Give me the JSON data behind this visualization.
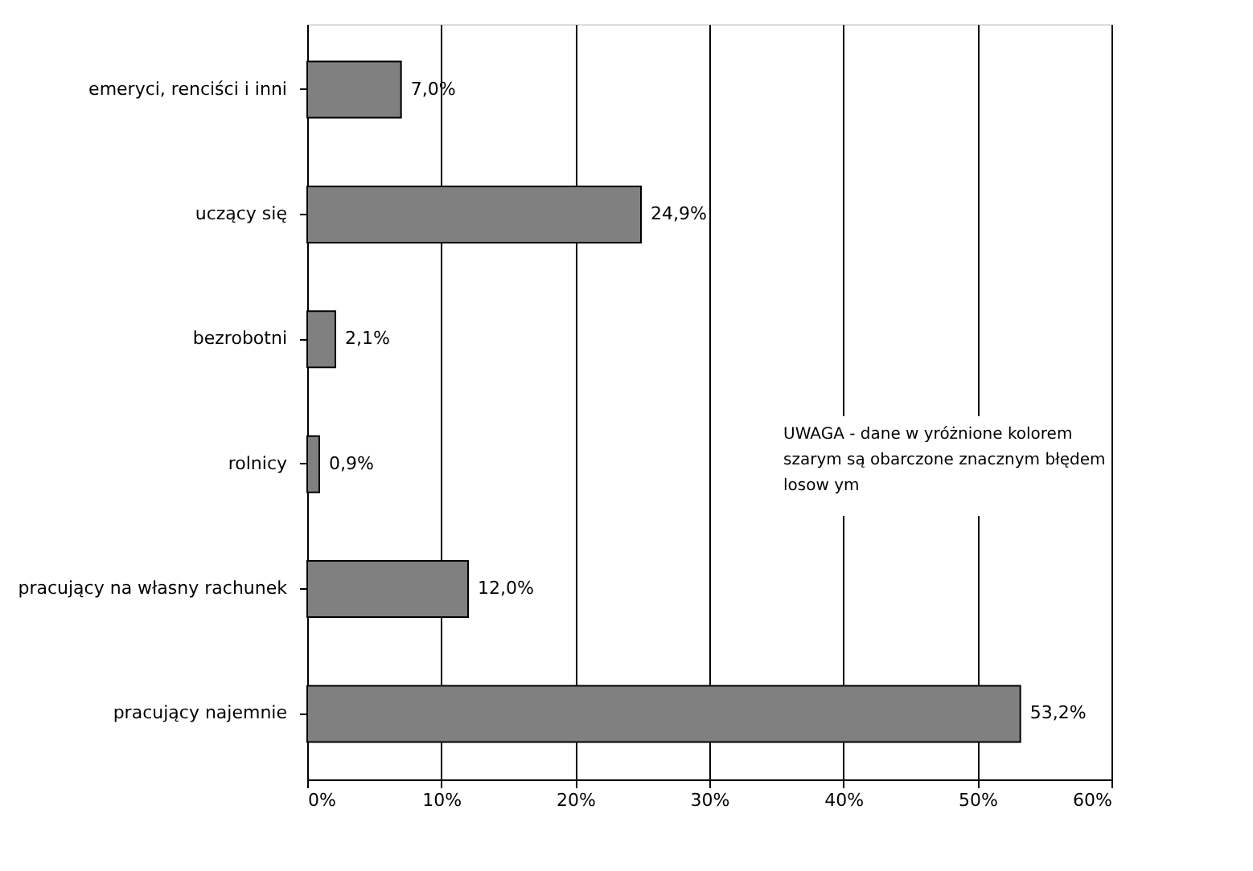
{
  "chart_data": {
    "type": "bar",
    "orientation": "horizontal",
    "categories": [
      "emeryci, renciści i inni",
      "uczący się",
      "bezrobotni",
      "rolnicy",
      "pracujący na własny rachunek",
      "pracujący najemnie"
    ],
    "values": [
      7.0,
      24.9,
      2.1,
      0.9,
      12.0,
      53.2
    ],
    "value_labels": [
      "7,0%",
      "24,9%",
      "2,1%",
      "0,9%",
      "12,0%",
      "53,2%"
    ],
    "color": "#808080",
    "xlim": [
      0,
      60
    ],
    "xticks": [
      {
        "value": 0,
        "label": "0%"
      },
      {
        "value": 10,
        "label": "10%"
      },
      {
        "value": 20,
        "label": "20%"
      },
      {
        "value": 30,
        "label": "30%"
      },
      {
        "value": 40,
        "label": "40%"
      },
      {
        "value": 50,
        "label": "50%"
      },
      {
        "value": 60,
        "label": "60%"
      }
    ],
    "grid": "x",
    "annotations": [
      {
        "text": "UWAGA - dane w yróżnione kolorem szarym są obarczone znacznym błędem losow ym"
      }
    ]
  }
}
